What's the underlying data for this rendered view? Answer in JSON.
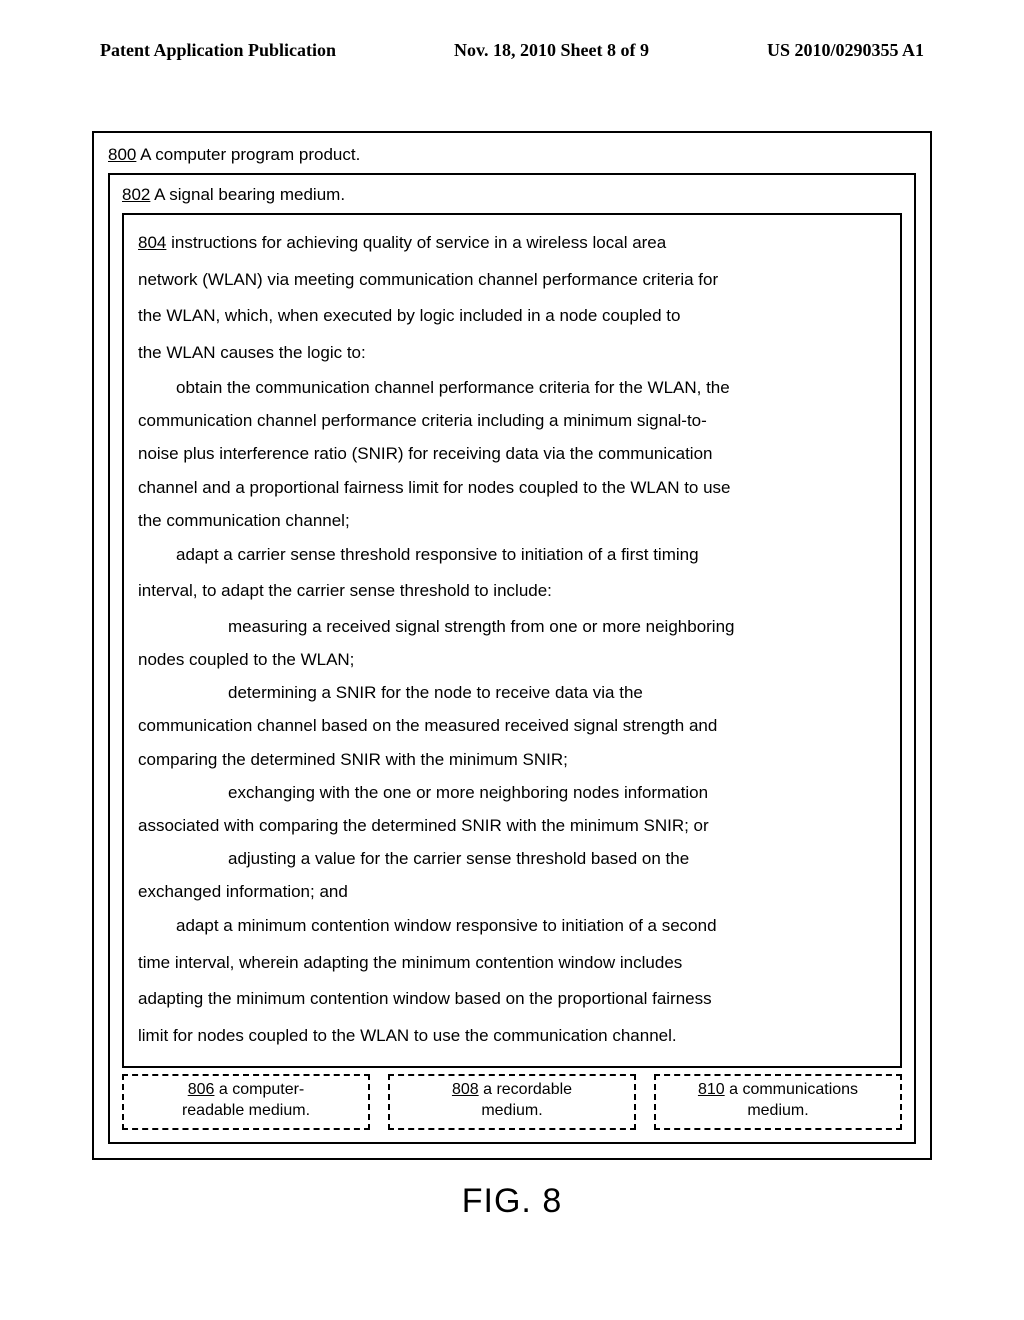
{
  "header": {
    "left": "Patent Application Publication",
    "center": "Nov. 18, 2010  Sheet 8 of 9",
    "right": "US 2010/0290355 A1"
  },
  "box800": {
    "num": "800",
    "text": "  A computer program product."
  },
  "box802": {
    "num": "802",
    "text": "  A signal bearing medium."
  },
  "box804": {
    "num": "804",
    "intro1": "  instructions for achieving quality of service in a wireless local area",
    "intro2": "network (WLAN) via meeting communication channel performance criteria for",
    "intro3": "the WLAN, which, when executed by logic included in a node coupled to",
    "intro4": "the WLAN causes the logic to:",
    "p1": "obtain the communication channel performance criteria for the WLAN, the",
    "p1b": "communication channel performance criteria including a minimum signal-to-",
    "p1c": "noise plus interference ratio (SNIR) for receiving data via the communication",
    "p1d": "channel and a proportional fairness limit for nodes coupled to the WLAN to use",
    "p1e": "the communication channel;",
    "p2": "adapt a carrier sense threshold responsive to initiation of a first timing",
    "p2b": "interval, to adapt the carrier sense threshold to include:",
    "p3": "measuring a received signal strength from one or more neighboring",
    "p3b": "nodes coupled to the WLAN;",
    "p4": "determining a SNIR for the node to receive data via the",
    "p4b": "communication channel based on the measured received signal strength and",
    "p4c": "comparing the determined SNIR with the minimum SNIR;",
    "p5": "exchanging with the one or more neighboring nodes information",
    "p5b": "associated with comparing the determined SNIR with the minimum SNIR; or",
    "p6": "adjusting a value for the carrier sense threshold based on the",
    "p6b": "exchanged information; and",
    "p7": "adapt a minimum contention window responsive to initiation of a second",
    "p7b": "time interval, wherein adapting the minimum contention window includes",
    "p7c": "adapting the minimum contention window based on the proportional fairness",
    "p7d": "limit for nodes coupled to the WLAN to use the communication channel."
  },
  "box806": {
    "num": "806",
    "text1": "  a computer-",
    "text2": "readable medium."
  },
  "box808": {
    "num": "808",
    "text1": "  a recordable",
    "text2": "medium."
  },
  "box810": {
    "num": "810",
    "text1": "  a communications",
    "text2": "medium."
  },
  "figure_label": "FIG. 8"
}
